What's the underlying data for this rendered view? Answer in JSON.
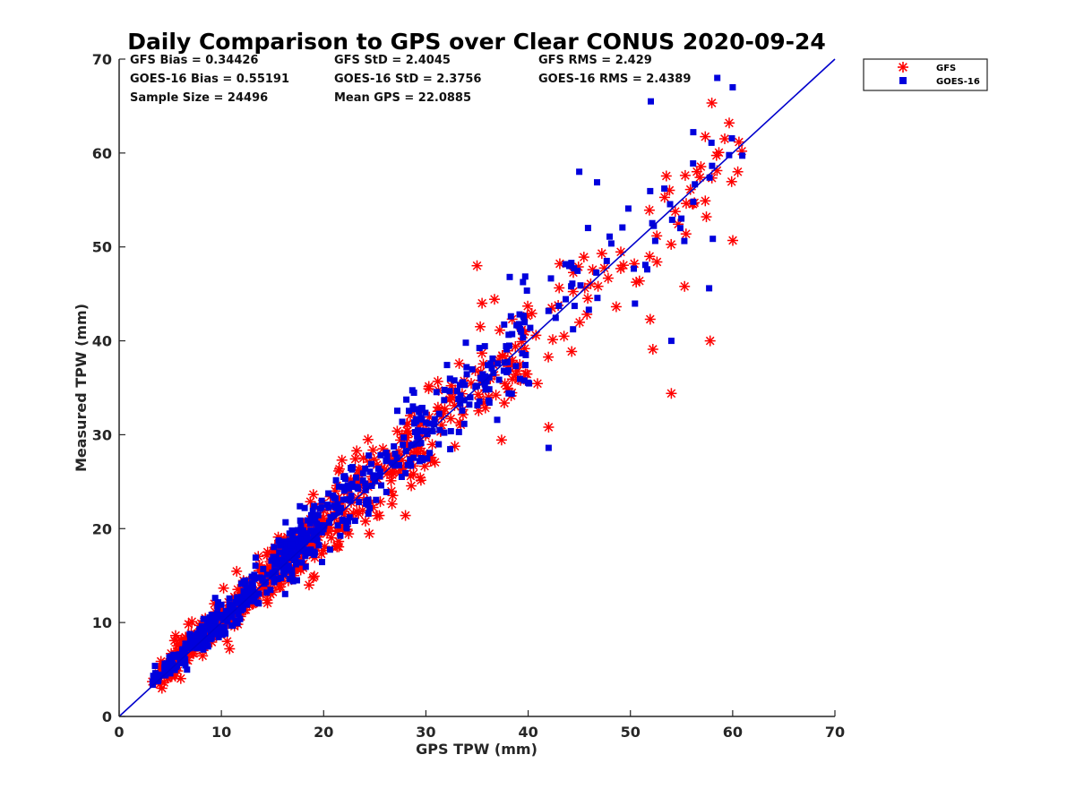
{
  "chart_data": {
    "type": "scatter",
    "title": "Daily Comparison to GPS over Clear CONUS 2020-09-24",
    "xlabel": "GPS TPW (mm)",
    "ylabel": "Measured TPW (mm)",
    "xlim": [
      0,
      70
    ],
    "ylim": [
      0,
      70
    ],
    "xticks": [
      "0",
      "10",
      "20",
      "30",
      "40",
      "50",
      "60",
      "70"
    ],
    "yticks": [
      "0",
      "10",
      "20",
      "30",
      "40",
      "50",
      "60",
      "70"
    ],
    "legend_position": "outside-top-right",
    "stats": {
      "gfs_bias": "GFS Bias = 0.34426",
      "goes_bias": "GOES-16 Bias = 0.55191",
      "sample_size": "Sample Size = 24496",
      "gfs_std": "GFS StD = 2.4045",
      "goes_std": "GOES-16 StD = 2.3756",
      "mean_gps": "Mean GPS = 22.0885",
      "gfs_rms": "GFS RMS = 2.429",
      "goes_rms": "GOES-16 RMS = 2.4389"
    },
    "reference_line": {
      "name": "1:1 line",
      "x": [
        0,
        70
      ],
      "y": [
        0,
        70
      ],
      "color": "#0000cc"
    },
    "series": [
      {
        "name": "GFS",
        "marker": "asterisk",
        "color": "#ff0000",
        "sample_size": 24496,
        "bias": 0.34426,
        "std": 2.4045,
        "x_range": [
          3,
          61
        ],
        "outliers": [
          [
            57.8,
            40.0
          ],
          [
            54.0,
            34.4
          ],
          [
            42.0,
            30.8
          ],
          [
            52.2,
            39.1
          ],
          [
            10.8,
            7.2
          ],
          [
            55.3,
            45.8
          ],
          [
            60.5,
            58.0
          ],
          [
            35.0,
            48.0
          ]
        ]
      },
      {
        "name": "GOES-16",
        "marker": "square",
        "color": "#0000dd",
        "sample_size": 24496,
        "bias": 0.55191,
        "std": 2.3756,
        "x_range": [
          3,
          61
        ],
        "outliers": [
          [
            52.0,
            65.5
          ],
          [
            58.5,
            68.0
          ],
          [
            60.0,
            67.0
          ],
          [
            45.0,
            58.0
          ],
          [
            42.0,
            28.6
          ],
          [
            57.7,
            45.6
          ],
          [
            54.0,
            40.0
          ],
          [
            38.2,
            46.8
          ]
        ]
      }
    ]
  }
}
